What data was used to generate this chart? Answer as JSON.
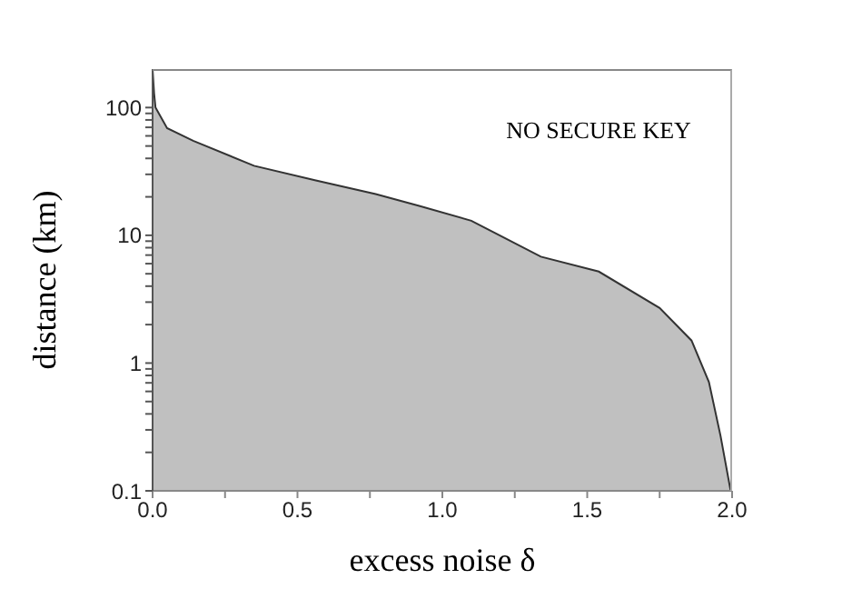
{
  "chart_data": {
    "type": "area",
    "xlabel": "excess noise δ",
    "ylabel": "distance (km)",
    "annotations": [
      "NO SECURE KEY"
    ],
    "x": [
      0,
      0.005,
      0.01,
      0.05,
      0.14,
      0.35,
      0.56,
      0.77,
      0.92,
      1.1,
      1.34,
      1.54,
      1.75,
      1.86,
      1.92,
      1.96,
      1.995
    ],
    "series": [
      {
        "color": "#c0c0c0",
        "values": [
          200,
          130,
          100,
          69,
          55,
          35,
          27,
          21,
          17,
          13,
          6.8,
          5.2,
          2.7,
          1.5,
          0.71,
          0.27,
          0.1
        ]
      }
    ],
    "log": "y",
    "marker": "none",
    "xlim": [
      0,
      2
    ],
    "ylim": [
      0.1,
      200
    ],
    "xticks": [
      {
        "value": 0,
        "label": "0.0"
      },
      {
        "value": 0.25,
        "label": null
      },
      0.5,
      {
        "value": 0.75,
        "label": null
      },
      {
        "value": 1,
        "label": "1.0"
      },
      {
        "value": 1.25,
        "label": null
      },
      1.5,
      {
        "value": 1.75,
        "label": null
      },
      {
        "value": 2,
        "label": "2.0"
      }
    ],
    "yticks": [
      0.1,
      {
        "value": 0.2,
        "label": null
      },
      {
        "value": 0.3,
        "label": null
      },
      {
        "value": 0.4,
        "label": null
      },
      {
        "value": 0.5,
        "label": null
      },
      {
        "value": 0.6,
        "label": null
      },
      {
        "value": 0.7,
        "label": null
      },
      {
        "value": 0.8,
        "label": null
      },
      {
        "value": 0.9,
        "label": null
      },
      1,
      {
        "value": 2,
        "label": null
      },
      {
        "value": 3,
        "label": null
      },
      {
        "value": 4,
        "label": null
      },
      {
        "value": 5,
        "label": null
      },
      {
        "value": 6,
        "label": null
      },
      {
        "value": 7,
        "label": null
      },
      {
        "value": 8,
        "label": null
      },
      {
        "value": 9,
        "label": null
      },
      10,
      {
        "value": 20,
        "label": null
      },
      {
        "value": 30,
        "label": null
      },
      {
        "value": 40,
        "label": null
      },
      {
        "value": 50,
        "label": null
      },
      {
        "value": 60,
        "label": null
      },
      {
        "value": 70,
        "label": null
      },
      {
        "value": 80,
        "label": null
      },
      {
        "value": 90,
        "label": null
      },
      100
    ]
  }
}
